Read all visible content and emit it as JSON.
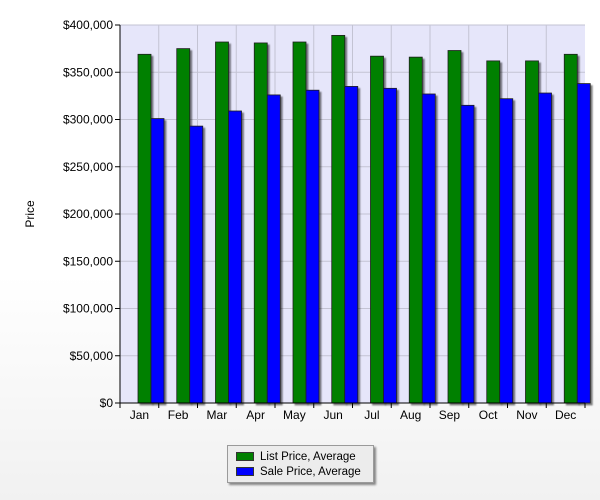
{
  "chart_data": {
    "type": "bar",
    "title": "",
    "xlabel": "",
    "ylabel": "Price",
    "ylim": [
      0,
      400000
    ],
    "yticks": [
      0,
      50000,
      100000,
      150000,
      200000,
      250000,
      300000,
      350000,
      400000
    ],
    "ytick_labels": [
      "$0",
      "$50,000",
      "$100,000",
      "$150,000",
      "$200,000",
      "$250,000",
      "$300,000",
      "$350,000",
      "$400,000"
    ],
    "categories": [
      "Jan",
      "Feb",
      "Mar",
      "Apr",
      "May",
      "Jun",
      "Jul",
      "Aug",
      "Sep",
      "Oct",
      "Nov",
      "Dec"
    ],
    "series": [
      {
        "name": "List Price, Average",
        "color": "#008000",
        "values": [
          369000,
          375000,
          382000,
          381000,
          382000,
          389000,
          367000,
          366000,
          373000,
          362000,
          362000,
          369000
        ]
      },
      {
        "name": "Sale Price, Average",
        "color": "#0000ff",
        "values": [
          301000,
          293000,
          309000,
          326000,
          331000,
          335000,
          333000,
          327000,
          315000,
          322000,
          328000,
          338000
        ]
      }
    ],
    "grid": true,
    "legend_position": "bottom"
  }
}
